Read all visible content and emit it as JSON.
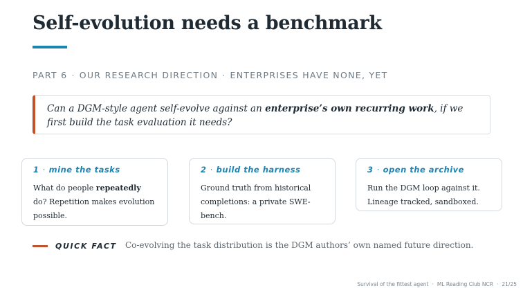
{
  "slide": {
    "title": "Self-evolution needs a benchmark",
    "accent_color": "#1a85b3",
    "highlight_color": "#c2522b"
  },
  "subtitle": {
    "part": "PART 6",
    "section": "OUR RESEARCH DIRECTION",
    "note": "ENTERPRISES HAVE NONE, YET",
    "separator": "·"
  },
  "question": {
    "before": "Can a DGM-style agent self-evolve against an ",
    "emphasis": "enterprise’s own recurring work",
    "after": ", if we first build the task evaluation it needs?"
  },
  "cards": [
    {
      "number": "1",
      "dot": "·",
      "heading": "mine the tasks",
      "body_before": "What do people ",
      "body_bold": "repeatedly",
      "body_after": " do? Repetition makes evolution possible."
    },
    {
      "number": "2",
      "dot": "·",
      "heading": "build the harness",
      "body_before": "Ground truth from historical completions: a private SWE-bench."
    },
    {
      "number": "3",
      "dot": "·",
      "heading": "open the archive",
      "body_before": "Run the DGM loop against it. Lineage tracked, sandboxed."
    }
  ],
  "quick_fact": {
    "label": "QUICK FACT",
    "text": "Co-evolving the task distribution is the DGM authors’ own named future direction."
  },
  "footer": {
    "talk": "Survival of the fittest agent",
    "venue": "ML Reading Club NCR",
    "page": "21/25",
    "separator": "·"
  }
}
